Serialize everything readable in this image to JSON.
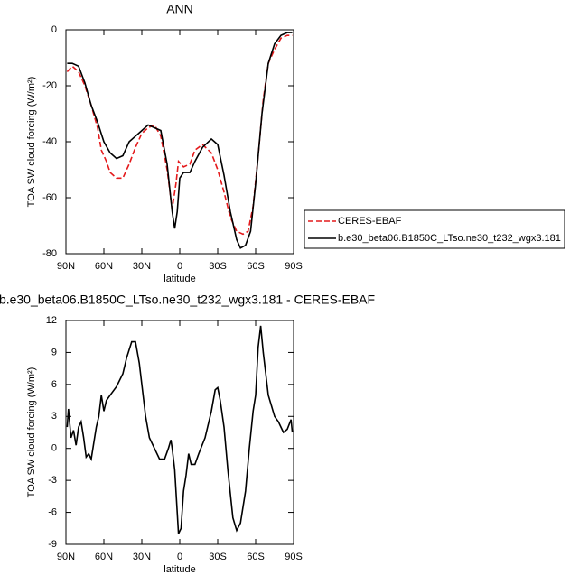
{
  "chart_data": [
    {
      "type": "line",
      "title": "ANN",
      "xlabel": "latitude",
      "ylabel": "TOA SW cloud forcing (W/m²)",
      "xlim": [
        90,
        -90
      ],
      "ylim": [
        -80,
        0
      ],
      "xticks": [
        {
          "value": 90,
          "label": "90N"
        },
        {
          "value": 60,
          "label": "60N"
        },
        {
          "value": 30,
          "label": "30N"
        },
        0,
        {
          "value": -30,
          "label": "30S"
        },
        {
          "value": -60,
          "label": "60S"
        },
        {
          "value": -90,
          "label": "90S"
        }
      ],
      "yticks": [
        0,
        -20,
        -40,
        -60,
        -80
      ],
      "series": [
        {
          "name": "CERES-EBAF",
          "color": "#e41a1c",
          "dash": true,
          "x": [
            89,
            85,
            80,
            75,
            70,
            65,
            62,
            58,
            55,
            50,
            45,
            40,
            35,
            30,
            25,
            20,
            15,
            10,
            6,
            3,
            1,
            -3,
            -8,
            -12,
            -18,
            -25,
            -30,
            -35,
            -40,
            -45,
            -50,
            -54,
            -58,
            -62,
            -66,
            -70,
            -75,
            -80,
            -85,
            -89
          ],
          "values": [
            -15,
            -13,
            -15,
            -20,
            -27,
            -35,
            -43,
            -47,
            -51,
            -53,
            -53,
            -48,
            -42,
            -37,
            -35,
            -34,
            -38,
            -50,
            -64,
            -55,
            -47,
            -49,
            -48,
            -43,
            -41,
            -44,
            -50,
            -58,
            -67,
            -72,
            -73,
            -72,
            -63,
            -45,
            -25,
            -12,
            -7,
            -3,
            -2,
            -2
          ]
        },
        {
          "name": "b.e30_beta06.B1850C_LTso.ne30_t232_wgx3.181",
          "color": "#000000",
          "dash": false,
          "x": [
            89,
            85,
            80,
            75,
            70,
            65,
            60,
            55,
            50,
            45,
            40,
            35,
            30,
            25,
            20,
            15,
            10,
            6,
            4,
            2,
            0,
            -3,
            -8,
            -12,
            -18,
            -25,
            -30,
            -35,
            -40,
            -45,
            -48,
            -52,
            -56,
            -60,
            -65,
            -70,
            -75,
            -80,
            -85,
            -89
          ],
          "values": [
            -12,
            -12,
            -13,
            -19,
            -27,
            -33,
            -40,
            -44,
            -46,
            -45,
            -40,
            -38,
            -36,
            -34,
            -35,
            -36,
            -48,
            -65,
            -71,
            -65,
            -53,
            -51,
            -51,
            -47,
            -42,
            -39,
            -41,
            -52,
            -65,
            -75,
            -78,
            -77,
            -72,
            -55,
            -30,
            -12,
            -5,
            -2,
            -1,
            -1
          ]
        }
      ]
    },
    {
      "type": "line",
      "title": "b.e30_beta06.B1850C_LTso.ne30_t232_wgx3.181 - CERES-EBAF",
      "xlabel": "latitude",
      "ylabel": "TOA SW cloud forcing (W/m²)",
      "xlim": [
        90,
        -90
      ],
      "ylim": [
        -9,
        12
      ],
      "xticks": [
        {
          "value": 90,
          "label": "90N"
        },
        {
          "value": 60,
          "label": "60N"
        },
        {
          "value": 30,
          "label": "30N"
        },
        0,
        {
          "value": -30,
          "label": "30S"
        },
        {
          "value": -60,
          "label": "60S"
        },
        {
          "value": -90,
          "label": "90S"
        }
      ],
      "yticks": [
        -9,
        -6,
        -3,
        0,
        3,
        6,
        9,
        12
      ],
      "series": [
        {
          "color": "#000000",
          "dash": false,
          "x": [
            89,
            88,
            86,
            84,
            82,
            80,
            78,
            76,
            74,
            72,
            70,
            68,
            66,
            64,
            62,
            60,
            58,
            55,
            50,
            45,
            42,
            38,
            35,
            32,
            30,
            27,
            24,
            20,
            16,
            12,
            9,
            7,
            6,
            4,
            2,
            1,
            -1,
            -3,
            -5,
            -7,
            -9,
            -12,
            -15,
            -20,
            -25,
            -28,
            -30,
            -32,
            -35,
            -38,
            -42,
            -45,
            -48,
            -52,
            -55,
            -58,
            -60,
            -62,
            -64,
            -66,
            -68,
            -70,
            -72,
            -75,
            -78,
            -80,
            -82,
            -85,
            -88,
            -89
          ],
          "values": [
            2,
            3.7,
            1,
            1.7,
            0.3,
            2,
            2.5,
            1,
            -0.8,
            -0.5,
            -1,
            0.5,
            2,
            3,
            5,
            3.5,
            4.5,
            5,
            5.8,
            7,
            8.5,
            10,
            10,
            8,
            6,
            3,
            1,
            0,
            -1,
            -1,
            0,
            0.8,
            0,
            -2,
            -6,
            -8,
            -7.5,
            -4,
            -2.5,
            -0.5,
            -1.5,
            -1.5,
            -0.5,
            1,
            3.5,
            5.5,
            5.7,
            4.5,
            2,
            -2,
            -6.5,
            -7.7,
            -7,
            -4,
            0,
            3.5,
            5,
            9.5,
            11.5,
            9,
            7,
            5,
            4.2,
            3,
            2.5,
            2,
            1.5,
            1.8,
            2.7,
            1.5
          ]
        }
      ]
    }
  ]
}
